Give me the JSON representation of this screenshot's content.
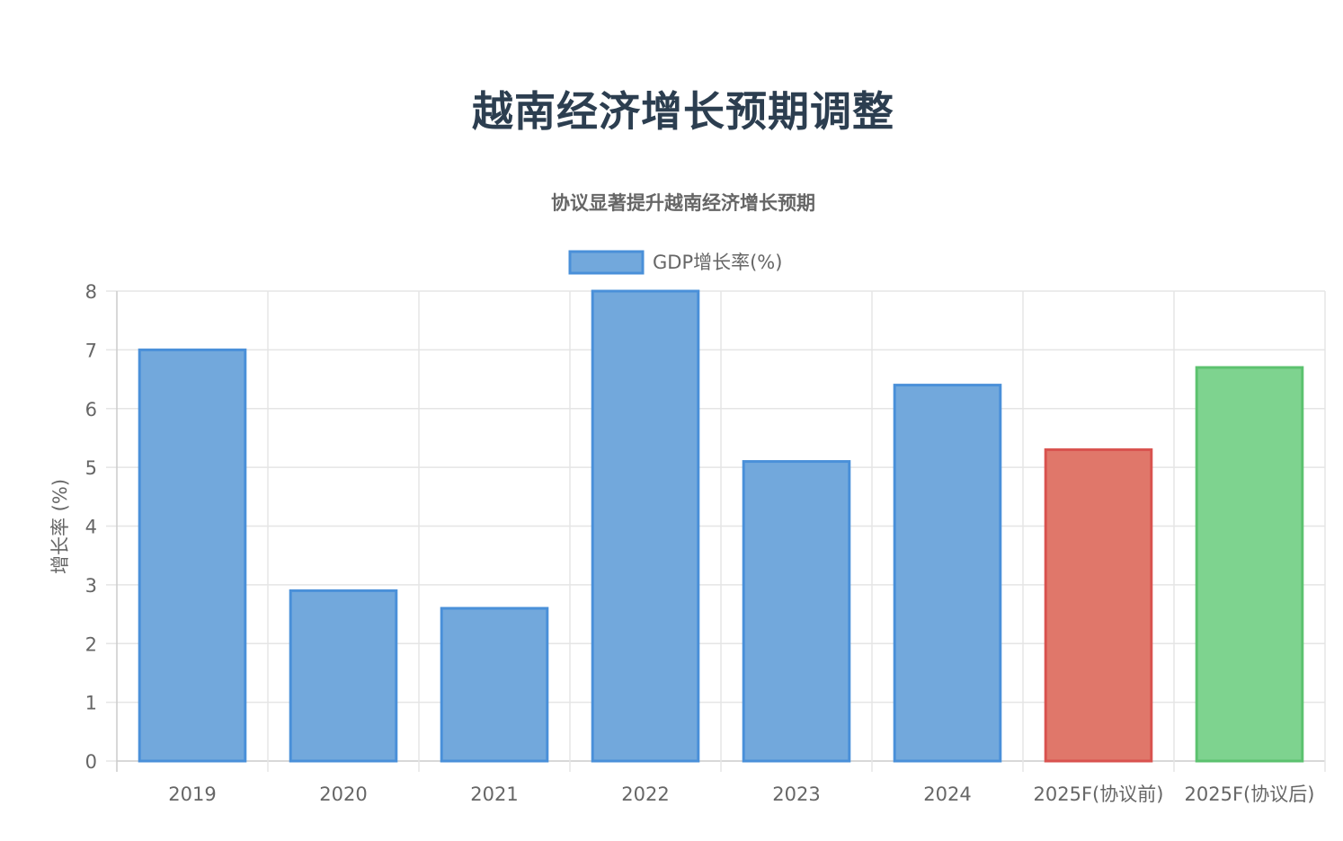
{
  "page": {
    "title": "越南经济增长预期调整"
  },
  "chart_data": {
    "type": "bar",
    "title": "越南经济增长预期调整",
    "subtitle": "协议显著提升越南经济增长预期",
    "categories": [
      "2019",
      "2020",
      "2021",
      "2022",
      "2023",
      "2024",
      "2025F(协议前)",
      "2025F(协议后)"
    ],
    "series": [
      {
        "name": "GDP增长率(%)",
        "values": [
          7.0,
          2.9,
          2.6,
          8.0,
          5.1,
          6.4,
          5.3,
          6.7
        ]
      }
    ],
    "ylabel": "增长率 (%)",
    "xlabel": "",
    "ylim": [
      0,
      8
    ],
    "yticks": [
      0,
      1,
      2,
      3,
      4,
      5,
      6,
      7,
      8
    ],
    "grid": true,
    "legend_position": "top",
    "colors": {
      "bar_fill": [
        "#72a8dc",
        "#72a8dc",
        "#72a8dc",
        "#72a8dc",
        "#72a8dc",
        "#72a8dc",
        "#e0776a",
        "#7ed38f"
      ],
      "bar_border": [
        "#4a90d9",
        "#4a90d9",
        "#4a90d9",
        "#4a90d9",
        "#4a90d9",
        "#4a90d9",
        "#d9534f",
        "#5cc26f"
      ],
      "grid": "#e5e5e5",
      "text": "#666666"
    }
  }
}
